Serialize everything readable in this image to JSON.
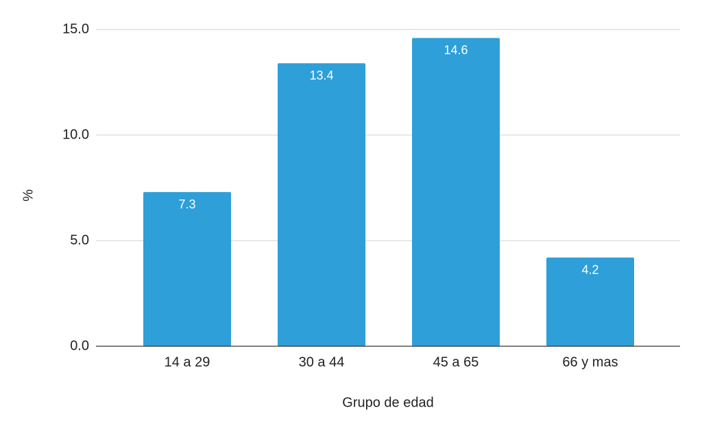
{
  "chart_data": {
    "type": "bar",
    "x_label": "Grupo de edad",
    "y_label": "%",
    "categories": [
      "14 a 29",
      "30 a 44",
      "45 a 65",
      "66 y mas"
    ],
    "values": [
      7.3,
      13.4,
      14.6,
      4.2
    ],
    "color": "#2e9fd8",
    "ylim": [
      0,
      15
    ],
    "yticks": [
      {
        "value": 0,
        "label": "0.0"
      },
      {
        "value": 5,
        "label": "5.0"
      },
      {
        "value": 10,
        "label": "10.0"
      },
      {
        "value": 15,
        "label": "15.0"
      }
    ],
    "grid": true
  }
}
